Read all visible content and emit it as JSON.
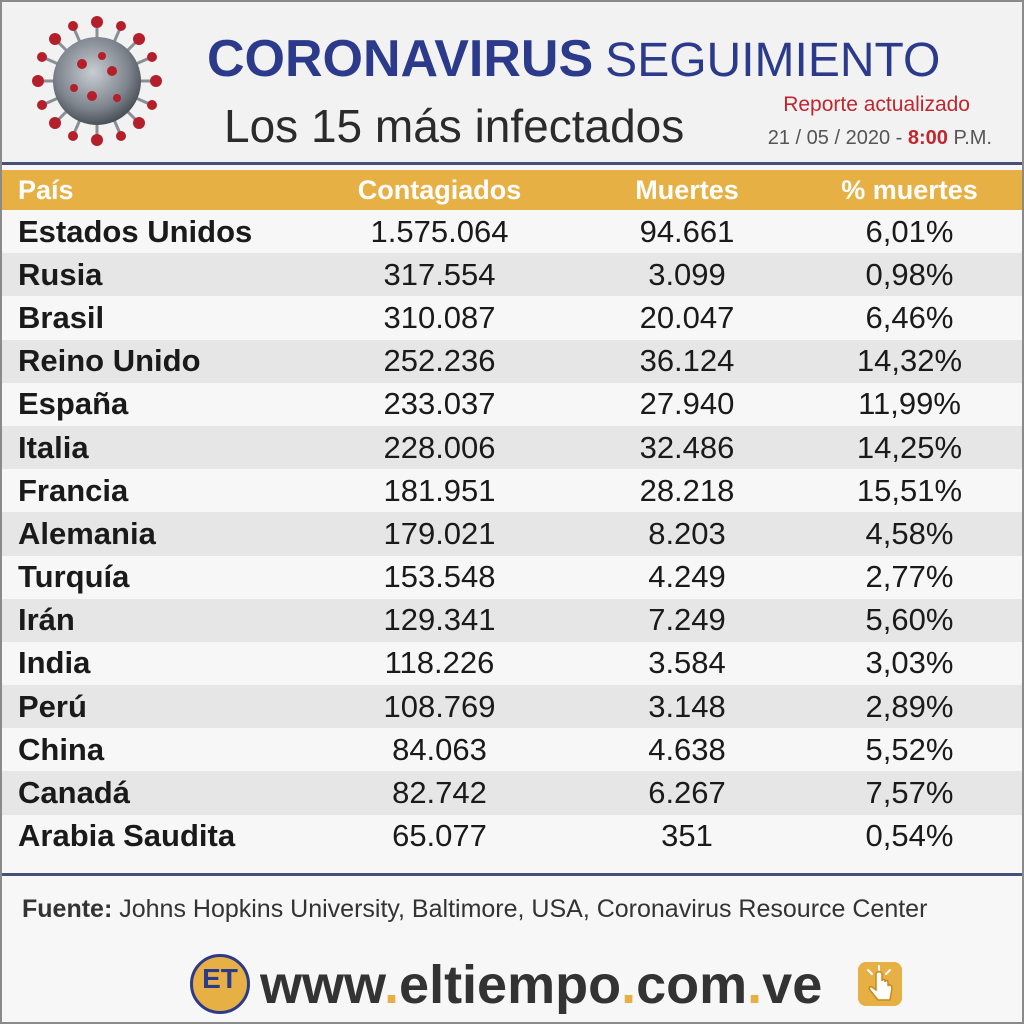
{
  "header": {
    "title_main": "CORONAVIRUS",
    "title_secondary": "SEGUIMIENTO",
    "subtitle": "Los 15 más infectados",
    "report_label": "Reporte actualizado",
    "date": "21 / 05 / 2020 -",
    "time": "8:00",
    "time_suffix": "P.M."
  },
  "table": {
    "headers": [
      "País",
      "Contagiados",
      "Muertes",
      "% muertes"
    ],
    "rows": [
      {
        "country": "Estados Unidos",
        "cases": "1.575.064",
        "deaths": "94.661",
        "pct": "6,01%"
      },
      {
        "country": "Rusia",
        "cases": "317.554",
        "deaths": "3.099",
        "pct": "0,98%"
      },
      {
        "country": "Brasil",
        "cases": "310.087",
        "deaths": "20.047",
        "pct": "6,46%"
      },
      {
        "country": "Reino Unido",
        "cases": "252.236",
        "deaths": "36.124",
        "pct": "14,32%"
      },
      {
        "country": "España",
        "cases": "233.037",
        "deaths": "27.940",
        "pct": "11,99%"
      },
      {
        "country": "Italia",
        "cases": "228.006",
        "deaths": "32.486",
        "pct": "14,25%"
      },
      {
        "country": "Francia",
        "cases": "181.951",
        "deaths": "28.218",
        "pct": "15,51%"
      },
      {
        "country": "Alemania",
        "cases": "179.021",
        "deaths": "8.203",
        "pct": "4,58%"
      },
      {
        "country": "Turquía",
        "cases": "153.548",
        "deaths": "4.249",
        "pct": "2,77%"
      },
      {
        "country": "Irán",
        "cases": "129.341",
        "deaths": "7.249",
        "pct": "5,60%"
      },
      {
        "country": "India",
        "cases": "118.226",
        "deaths": "3.584",
        "pct": "3,03%"
      },
      {
        "country": "Perú",
        "cases": "108.769",
        "deaths": "3.148",
        "pct": "2,89%"
      },
      {
        "country": "China",
        "cases": "84.063",
        "deaths": "4.638",
        "pct": "5,52%"
      },
      {
        "country": "Canadá",
        "cases": "82.742",
        "deaths": "6.267",
        "pct": "7,57%"
      },
      {
        "country": "Arabia Saudita",
        "cases": "65.077",
        "deaths": "351",
        "pct": "0,54%"
      }
    ]
  },
  "footer": {
    "source_label": "Fuente:",
    "source_text": "Johns Hopkins University, Baltimore, USA, Coronavirus Resource Center",
    "logo_text": "ET",
    "url_parts": [
      "www",
      ".",
      "eltiempo",
      ".",
      "com",
      ".",
      "ve"
    ]
  },
  "colors": {
    "title_blue": "#2c3a8c",
    "header_gold": "#e7b044",
    "accent_red": "#c0262e",
    "row_alt": "#e6e6e6"
  },
  "icons": [
    "coronavirus-illustration",
    "world-map-watermark",
    "et-logo",
    "click-hand-icon"
  ]
}
